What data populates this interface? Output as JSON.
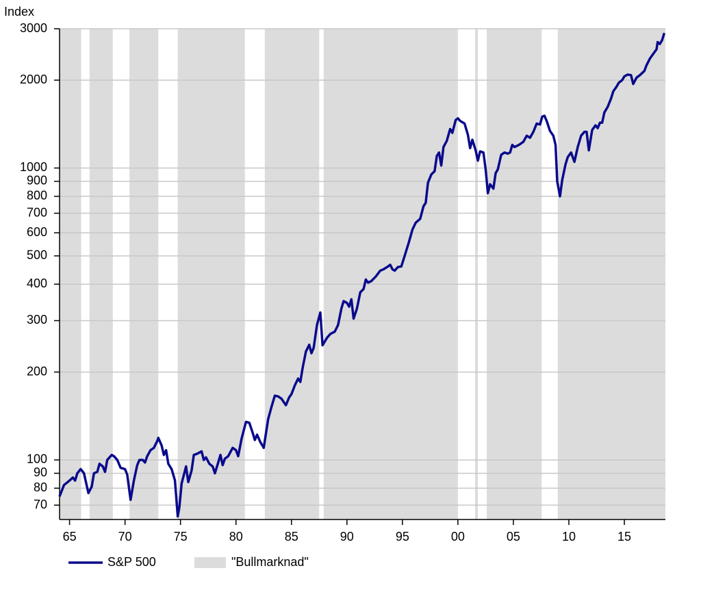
{
  "chart_data": {
    "type": "line",
    "y_label": "Index",
    "log_scale": true,
    "grid": true,
    "xlim": [
      1964.1,
      2018.7
    ],
    "xticks": [
      {
        "value": 1965,
        "label": "65"
      },
      {
        "value": 1970,
        "label": "70"
      },
      {
        "value": 1975,
        "label": "75"
      },
      {
        "value": 1980,
        "label": "80"
      },
      {
        "value": 1985,
        "label": "85"
      },
      {
        "value": 1990,
        "label": "90"
      },
      {
        "value": 1995,
        "label": "95"
      },
      {
        "value": 2000,
        "label": "00"
      },
      {
        "value": 2005,
        "label": "05"
      },
      {
        "value": 2010,
        "label": "10"
      },
      {
        "value": 2015,
        "label": "15"
      }
    ],
    "ylim": [
      62.5,
      3000
    ],
    "yticks": [
      70,
      80,
      90,
      100,
      200,
      300,
      400,
      500,
      600,
      700,
      800,
      900,
      1000,
      2000,
      3000
    ],
    "shading": {
      "name": "\"Bullmarknad\"",
      "color": "#dcdcdc",
      "periods": [
        [
          1964.1,
          1966.05
        ],
        [
          1966.8,
          1968.9
        ],
        [
          1970.4,
          1973.0
        ],
        [
          1974.75,
          1980.8
        ],
        [
          1982.6,
          1987.5
        ],
        [
          1987.9,
          2000.0
        ],
        [
          2001.55,
          2001.8
        ],
        [
          2002.6,
          2007.55
        ],
        [
          2009.0,
          2018.7
        ]
      ]
    },
    "x": [
      1964.1,
      1964.5,
      1965.0,
      1965.3,
      1965.5,
      1965.7,
      1966.0,
      1966.3,
      1966.7,
      1967.0,
      1967.2,
      1967.5,
      1967.7,
      1968.0,
      1968.2,
      1968.4,
      1968.8,
      1969.0,
      1969.3,
      1969.6,
      1970.0,
      1970.2,
      1970.5,
      1970.8,
      1971.1,
      1971.3,
      1971.6,
      1971.8,
      1972.0,
      1972.3,
      1972.6,
      1972.9,
      1973.0,
      1973.3,
      1973.5,
      1973.7,
      1973.9,
      1974.2,
      1974.5,
      1974.75,
      1974.9,
      1975.1,
      1975.5,
      1975.7,
      1976.0,
      1976.2,
      1976.5,
      1976.9,
      1977.1,
      1977.3,
      1977.6,
      1977.9,
      1978.1,
      1978.4,
      1978.6,
      1978.8,
      1979.0,
      1979.3,
      1979.7,
      1980.0,
      1980.2,
      1980.5,
      1980.9,
      1981.2,
      1981.5,
      1981.7,
      1981.9,
      1982.2,
      1982.5,
      1982.9,
      1983.2,
      1983.5,
      1983.8,
      1984.1,
      1984.5,
      1984.8,
      1985.0,
      1985.3,
      1985.6,
      1985.8,
      1986.0,
      1986.3,
      1986.6,
      1986.8,
      1987.0,
      1987.3,
      1987.6,
      1987.8,
      1988.2,
      1988.5,
      1988.9,
      1989.2,
      1989.5,
      1989.7,
      1990.0,
      1990.2,
      1990.4,
      1990.6,
      1990.9,
      1991.2,
      1991.5,
      1991.7,
      1991.9,
      1992.2,
      1992.6,
      1993.0,
      1993.3,
      1993.7,
      1993.9,
      1994.1,
      1994.3,
      1994.6,
      1994.9,
      1995.2,
      1995.6,
      1995.9,
      1996.2,
      1996.6,
      1996.9,
      1997.1,
      1997.3,
      1997.6,
      1997.9,
      1998.1,
      1998.3,
      1998.5,
      1998.7,
      1999.0,
      1999.3,
      1999.5,
      1999.8,
      2000.0,
      2000.2,
      2000.6,
      2000.9,
      2001.1,
      2001.3,
      2001.6,
      2001.8,
      2002.0,
      2002.3,
      2002.5,
      2002.7,
      2002.9,
      2003.2,
      2003.4,
      2003.6,
      2003.9,
      2004.2,
      2004.5,
      2004.7,
      2004.9,
      2005.1,
      2005.5,
      2005.9,
      2006.2,
      2006.5,
      2006.8,
      2007.1,
      2007.4,
      2007.6,
      2007.8,
      2008.0,
      2008.3,
      2008.6,
      2008.8,
      2008.95,
      2009.2,
      2009.4,
      2009.7,
      2009.9,
      2010.2,
      2010.5,
      2010.8,
      2011.1,
      2011.4,
      2011.6,
      2011.8,
      2012.1,
      2012.4,
      2012.6,
      2012.8,
      2013.0,
      2013.2,
      2013.5,
      2013.8,
      2014.0,
      2014.3,
      2014.5,
      2014.8,
      2015.0,
      2015.3,
      2015.6,
      2015.8,
      2016.1,
      2016.4,
      2016.8,
      2017.0,
      2017.3,
      2017.6,
      2017.9,
      2018.0,
      2018.2,
      2018.4,
      2018.6
    ],
    "series": [
      {
        "name": "S&P 500",
        "color": "#0a0a8c",
        "values": [
          75,
          82,
          85,
          87,
          85,
          90,
          93,
          90,
          77,
          81,
          90,
          91,
          97,
          95,
          91,
          100,
          104,
          103,
          100,
          94,
          93,
          89,
          73,
          85,
          96,
          100,
          100,
          98,
          103,
          108,
          110,
          116,
          119,
          112,
          104,
          108,
          97,
          93,
          85,
          64,
          69,
          83,
          95,
          84,
          92,
          104,
          105,
          107,
          100,
          102,
          97,
          95,
          90,
          98,
          104,
          96,
          101,
          103,
          110,
          108,
          103,
          118,
          135,
          134,
          124,
          117,
          122,
          115,
          110,
          138,
          152,
          166,
          165,
          162,
          154,
          164,
          168,
          180,
          190,
          185,
          206,
          235,
          248,
          232,
          242,
          290,
          320,
          247,
          262,
          270,
          275,
          290,
          330,
          350,
          345,
          335,
          355,
          305,
          330,
          375,
          385,
          415,
          405,
          410,
          425,
          445,
          450,
          460,
          466,
          450,
          445,
          458,
          460,
          500,
          560,
          615,
          650,
          670,
          740,
          760,
          890,
          950,
          975,
          1100,
          1130,
          1020,
          1180,
          1240,
          1360,
          1320,
          1460,
          1480,
          1450,
          1420,
          1300,
          1170,
          1250,
          1150,
          1060,
          1140,
          1130,
          990,
          820,
          880,
          850,
          960,
          990,
          1110,
          1130,
          1120,
          1130,
          1200,
          1180,
          1200,
          1230,
          1290,
          1270,
          1330,
          1420,
          1410,
          1500,
          1510,
          1450,
          1340,
          1290,
          1200,
          900,
          800,
          910,
          1030,
          1090,
          1130,
          1050,
          1180,
          1290,
          1330,
          1330,
          1150,
          1350,
          1400,
          1370,
          1430,
          1430,
          1550,
          1620,
          1730,
          1830,
          1900,
          1960,
          2000,
          2060,
          2090,
          2080,
          1940,
          2040,
          2080,
          2150,
          2250,
          2370,
          2460,
          2550,
          2700,
          2660,
          2740,
          2900
        ]
      }
    ]
  }
}
